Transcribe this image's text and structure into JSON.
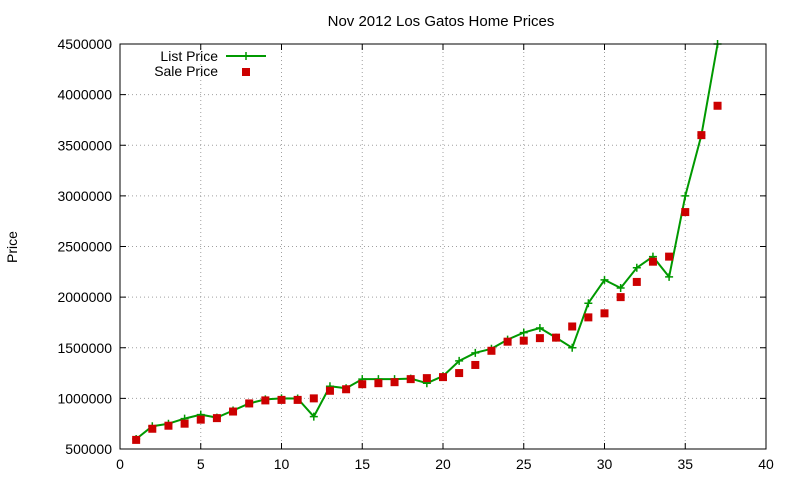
{
  "chart_data": {
    "type": "line",
    "title": "Nov 2012 Los Gatos Home Prices",
    "xlabel": "",
    "ylabel": "Price",
    "xlim": [
      0,
      40
    ],
    "ylim": [
      500000,
      4500000
    ],
    "xticks": [
      0,
      5,
      10,
      15,
      20,
      25,
      30,
      35,
      40
    ],
    "yticks": [
      500000,
      1000000,
      1500000,
      2000000,
      2500000,
      3000000,
      3500000,
      4000000,
      4500000
    ],
    "grid": true,
    "legend": "top-left",
    "series": [
      {
        "name": "List Price",
        "style": "line+cross",
        "color": "#009900",
        "x": [
          1,
          2,
          3,
          4,
          5,
          6,
          7,
          8,
          9,
          10,
          11,
          12,
          13,
          14,
          15,
          16,
          17,
          18,
          19,
          20,
          21,
          22,
          23,
          24,
          25,
          26,
          27,
          28,
          29,
          30,
          31,
          32,
          33,
          34,
          35,
          36,
          37
        ],
        "y": [
          599000,
          725000,
          750000,
          800000,
          840000,
          810000,
          880000,
          950000,
          990000,
          1000000,
          999000,
          820000,
          1120000,
          1100000,
          1190000,
          1190000,
          1190000,
          1195000,
          1150000,
          1220000,
          1370000,
          1450000,
          1490000,
          1580000,
          1650000,
          1695000,
          1600000,
          1500000,
          1940000,
          2170000,
          2090000,
          2290000,
          2400000,
          2200000,
          3000000,
          3600000,
          4500000
        ]
      },
      {
        "name": "Sale Price",
        "style": "square",
        "color": "#cc0000",
        "x": [
          1,
          2,
          3,
          4,
          5,
          6,
          7,
          8,
          9,
          10,
          11,
          12,
          13,
          14,
          15,
          16,
          17,
          18,
          19,
          20,
          21,
          22,
          23,
          24,
          25,
          26,
          27,
          28,
          29,
          30,
          31,
          32,
          33,
          34,
          35,
          36,
          37
        ],
        "y": [
          590000,
          700000,
          730000,
          750000,
          790000,
          805000,
          870000,
          950000,
          980000,
          985000,
          985000,
          1000000,
          1075000,
          1090000,
          1140000,
          1150000,
          1160000,
          1190000,
          1200000,
          1210000,
          1250000,
          1330000,
          1470000,
          1560000,
          1570000,
          1595000,
          1600000,
          1710000,
          1800000,
          1840000,
          2000000,
          2150000,
          2350000,
          2400000,
          2840000,
          3600000,
          3890000
        ]
      }
    ]
  }
}
